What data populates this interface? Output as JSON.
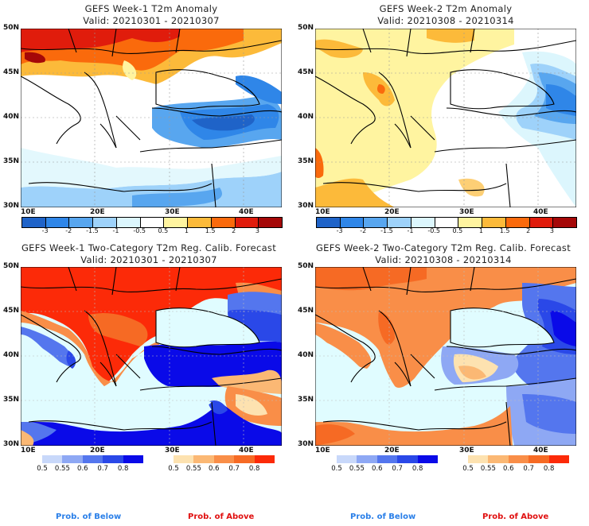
{
  "panels": [
    {
      "id": "w1-anom",
      "title": "GEFS Week-1 T2m Anomaly",
      "valid": "Valid: 20210301 - 20210307",
      "type": "anomaly"
    },
    {
      "id": "w2-anom",
      "title": "GEFS Week-2 T2m Anomaly",
      "valid": "Valid: 20210308 - 20210314",
      "type": "anomaly"
    },
    {
      "id": "w1-prob",
      "title": "GEFS Week-1 Two-Category T2m Reg. Calib. Forecast",
      "valid": "Valid: 20210301 - 20210307",
      "type": "prob"
    },
    {
      "id": "w2-prob",
      "title": "GEFS Week-2 Two-Category T2m Reg. Calib. Forecast",
      "valid": "Valid: 20210308 - 20210314",
      "type": "prob"
    }
  ],
  "axes": {
    "lat_labels": [
      "50N",
      "45N",
      "40N",
      "35N",
      "30N"
    ],
    "lon_labels": [
      "10E",
      "20E",
      "30E",
      "40E"
    ]
  },
  "anomaly_colorbar": {
    "colors": [
      "#1f63c8",
      "#2f86e8",
      "#58a6ef",
      "#9ed2fa",
      "#dcf6fd",
      "#ffffff",
      "#fff4a0",
      "#fcba3a",
      "#fa6a0c",
      "#e01c0c",
      "#a50808"
    ],
    "labels": [
      "-3",
      "-2",
      "-1.5",
      "-1",
      "-0.5",
      "0.5",
      "1",
      "1.5",
      "2",
      "3"
    ]
  },
  "below_colorbar": {
    "colors": [
      "#c8d8fa",
      "#8ea8f4",
      "#5476ee",
      "#2a48e8",
      "#0a0ae8"
    ],
    "labels": [
      "0.5",
      "0.55",
      "0.6",
      "0.7",
      "0.8"
    ]
  },
  "above_colorbar": {
    "colors": [
      "#fde2b0",
      "#fbb874",
      "#f98e48",
      "#f66a24",
      "#fc2a08"
    ],
    "labels": [
      "0.5",
      "0.55",
      "0.6",
      "0.7",
      "0.8"
    ]
  },
  "footer": {
    "below_label": "Prob. of Below",
    "above_label": "Prob. of Above",
    "below_color": "#2a7fe8",
    "above_color": "#e01010"
  },
  "map_colors": {
    "sea_prob": "#e0fcff",
    "land_white": "#ffffff"
  }
}
